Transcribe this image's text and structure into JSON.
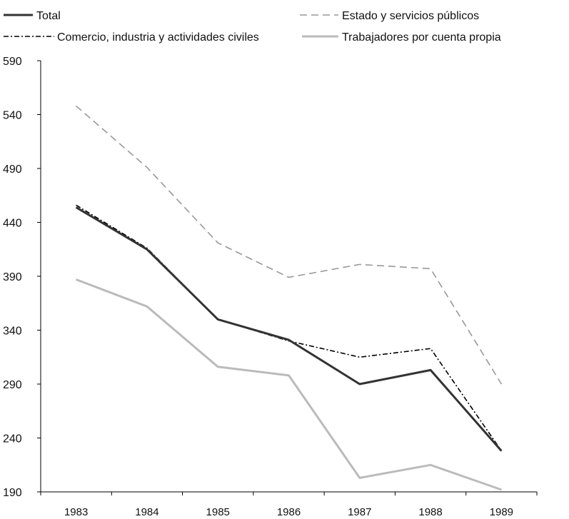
{
  "chart_data": {
    "type": "line",
    "title": "",
    "xlabel": "",
    "ylabel": "",
    "categories": [
      "1983",
      "1984",
      "1985",
      "1986",
      "1987",
      "1988",
      "1989"
    ],
    "ylim": [
      190,
      590
    ],
    "yticks": [
      190,
      240,
      290,
      340,
      390,
      440,
      490,
      540,
      590
    ],
    "grid": false,
    "legend_position": "top",
    "series": [
      {
        "name": "Total",
        "values": [
          454,
          415,
          350,
          331,
          290,
          303,
          228
        ],
        "color": "#333333",
        "style": "solid"
      },
      {
        "name": "Comercio, industria y actividades civiles",
        "values": [
          456,
          416,
          350,
          330,
          315,
          323,
          228
        ],
        "color": "#000000",
        "style": "dashdot"
      },
      {
        "name": "Estado y servicios públicos",
        "values": [
          548,
          491,
          421,
          389,
          401,
          397,
          290
        ],
        "color": "#999999",
        "style": "dashed"
      },
      {
        "name": "Trabajadores por cuenta propia",
        "values": [
          387,
          362,
          306,
          298,
          203,
          215,
          192
        ],
        "color": "#bbbbbb",
        "style": "solid"
      }
    ]
  }
}
